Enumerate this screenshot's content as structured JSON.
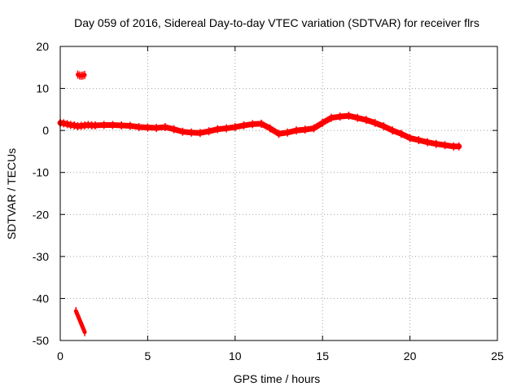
{
  "chart_data": {
    "type": "scatter",
    "title": "Day 059 of 2016, Sidereal Day-to-day VTEC variation (SDTVAR) for receiver flrs",
    "xlabel": "GPS time / hours",
    "ylabel": "SDTVAR / TECUs",
    "xlim": [
      0,
      25
    ],
    "ylim": [
      -50,
      20
    ],
    "xticks": [
      0,
      5,
      10,
      15,
      20,
      25
    ],
    "yticks": [
      -50,
      -40,
      -30,
      -20,
      -10,
      0,
      10,
      20
    ],
    "xtick_labels": [
      "0",
      "5",
      "10",
      "15",
      "20",
      "25"
    ],
    "ytick_labels": [
      "-50",
      "-40",
      "-30",
      "-20",
      "-10",
      "0",
      "10",
      "20"
    ],
    "grid": true,
    "marker_color": "#ff0000",
    "series": [
      {
        "name": "main",
        "x": [
          0.0,
          0.2,
          0.4,
          0.6,
          0.8,
          1.0,
          1.2,
          1.4,
          1.6,
          1.8,
          2.0,
          2.5,
          3.0,
          3.5,
          4.0,
          4.5,
          5.0,
          5.5,
          6.0,
          6.5,
          7.0,
          7.5,
          8.0,
          8.5,
          9.0,
          9.5,
          10.0,
          10.5,
          11.0,
          11.5,
          12.0,
          12.5,
          13.0,
          13.5,
          14.0,
          14.5,
          15.0,
          15.5,
          16.0,
          16.5,
          17.0,
          17.5,
          18.0,
          18.5,
          19.0,
          19.5,
          20.0,
          20.5,
          21.0,
          21.5,
          22.0,
          22.5,
          22.8
        ],
        "y": [
          1.8,
          1.7,
          1.5,
          1.3,
          1.2,
          1.0,
          1.1,
          1.2,
          1.3,
          1.2,
          1.2,
          1.3,
          1.3,
          1.2,
          1.1,
          0.8,
          0.7,
          0.6,
          0.8,
          0.3,
          -0.3,
          -0.5,
          -0.6,
          -0.2,
          0.3,
          0.5,
          0.8,
          1.2,
          1.5,
          1.6,
          0.5,
          -0.8,
          -0.5,
          0.0,
          0.2,
          0.5,
          1.8,
          3.0,
          3.3,
          3.5,
          3.0,
          2.5,
          1.8,
          1.0,
          0.0,
          -0.8,
          -1.8,
          -2.3,
          -2.8,
          -3.2,
          -3.5,
          -3.8,
          -3.8
        ]
      },
      {
        "name": "outlier-high",
        "x": [
          1.0,
          1.1,
          1.2,
          1.3,
          1.4
        ],
        "y": [
          13.3,
          13.1,
          13.0,
          13.1,
          13.2
        ]
      },
      {
        "name": "outlier-low",
        "x": [
          0.9,
          1.0,
          1.1,
          1.2,
          1.3,
          1.4
        ],
        "y": [
          -43.0,
          -44.0,
          -45.0,
          -46.0,
          -47.0,
          -48.0
        ]
      }
    ]
  }
}
